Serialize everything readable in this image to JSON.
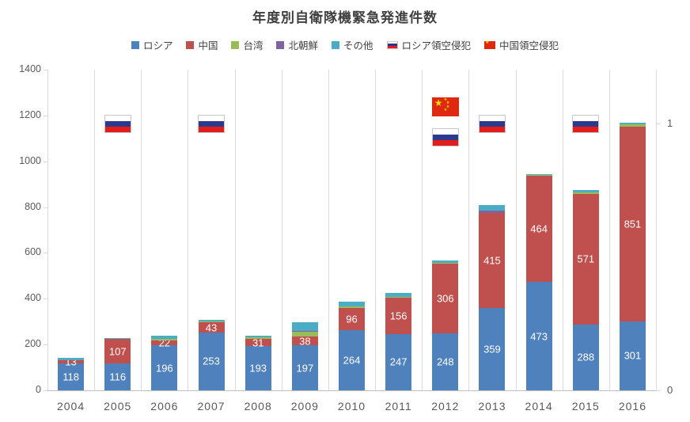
{
  "title": "年度別自衛隊機緊急発進件数",
  "legend": [
    {
      "label": "ロシア",
      "marker": "square",
      "color": "#4F81BD"
    },
    {
      "label": "中国",
      "marker": "square",
      "color": "#C0504D"
    },
    {
      "label": "台湾",
      "marker": "square",
      "color": "#9BBB59"
    },
    {
      "label": "北朝鮮",
      "marker": "square",
      "color": "#8064A2"
    },
    {
      "label": "その他",
      "marker": "square",
      "color": "#4BACC6"
    },
    {
      "label": "ロシア領空侵犯",
      "marker": "russia-flag"
    },
    {
      "label": "中国領空侵犯",
      "marker": "china-flag"
    }
  ],
  "chart_data": {
    "type": "bar",
    "subtype": "stacked",
    "title": "年度別自衛隊機緊急発進件数",
    "categories": [
      "2004",
      "2005",
      "2006",
      "2007",
      "2008",
      "2009",
      "2010",
      "2011",
      "2012",
      "2013",
      "2014",
      "2015",
      "2016"
    ],
    "series": [
      {
        "name": "ロシア",
        "color": "#4F81BD",
        "show_labels": true,
        "values": [
          118,
          116,
          196,
          253,
          193,
          197,
          264,
          247,
          248,
          359,
          473,
          288,
          301
        ]
      },
      {
        "name": "中国",
        "color": "#C0504D",
        "show_labels": true,
        "values": [
          13,
          107,
          22,
          43,
          31,
          38,
          96,
          156,
          306,
          415,
          464,
          571,
          851
        ]
      },
      {
        "name": "台湾",
        "color": "#9BBB59",
        "show_labels": false,
        "values": [
          0,
          5,
          7,
          5,
          7,
          20,
          7,
          6,
          4,
          0,
          2,
          4,
          8
        ]
      },
      {
        "name": "北朝鮮",
        "color": "#8064A2",
        "show_labels": false,
        "values": [
          0,
          0,
          0,
          0,
          0,
          3,
          0,
          0,
          0,
          9,
          0,
          0,
          0
        ]
      },
      {
        "name": "その他",
        "color": "#4BACC6",
        "show_labels": false,
        "values": [
          10,
          1,
          14,
          6,
          6,
          41,
          19,
          16,
          9,
          27,
          4,
          10,
          8
        ]
      }
    ],
    "totals": [
      141,
      229,
      239,
      307,
      237,
      299,
      386,
      425,
      567,
      810,
      943,
      873,
      1168
    ],
    "y_axis": {
      "min": 0,
      "max": 1400,
      "step": 200,
      "tick_labels": [
        "0",
        "200",
        "400",
        "600",
        "800",
        "1000",
        "1200",
        "1400"
      ]
    },
    "y2_axis": {
      "min": 0,
      "max": 1.2,
      "ticks": [
        {
          "value": 1,
          "label": "1"
        },
        {
          "value": 0,
          "label": "0"
        }
      ]
    },
    "annotations": {
      "russia_airspace_violation": {
        "label": "ロシア領空侵犯",
        "years": [
          "2005",
          "2007",
          "2012",
          "2013",
          "2015"
        ]
      },
      "china_airspace_violation": {
        "label": "中国領空侵犯",
        "years": [
          "2012"
        ]
      }
    },
    "legend_position": "top",
    "grid": "vertical-category-lines"
  },
  "colors": {
    "russia": "#4F81BD",
    "china": "#C0504D",
    "taiwan": "#9BBB59",
    "north_korea": "#8064A2",
    "others": "#4BACC6",
    "axis_text": "#595959",
    "gridline": "#D9D9D9",
    "bar_label": "#FFFFFF",
    "russia_flag_blue": "#2B3A8C",
    "russia_flag_red": "#E31C1C",
    "china_flag_red": "#DE2910",
    "china_flag_star": "#FFDE00"
  }
}
